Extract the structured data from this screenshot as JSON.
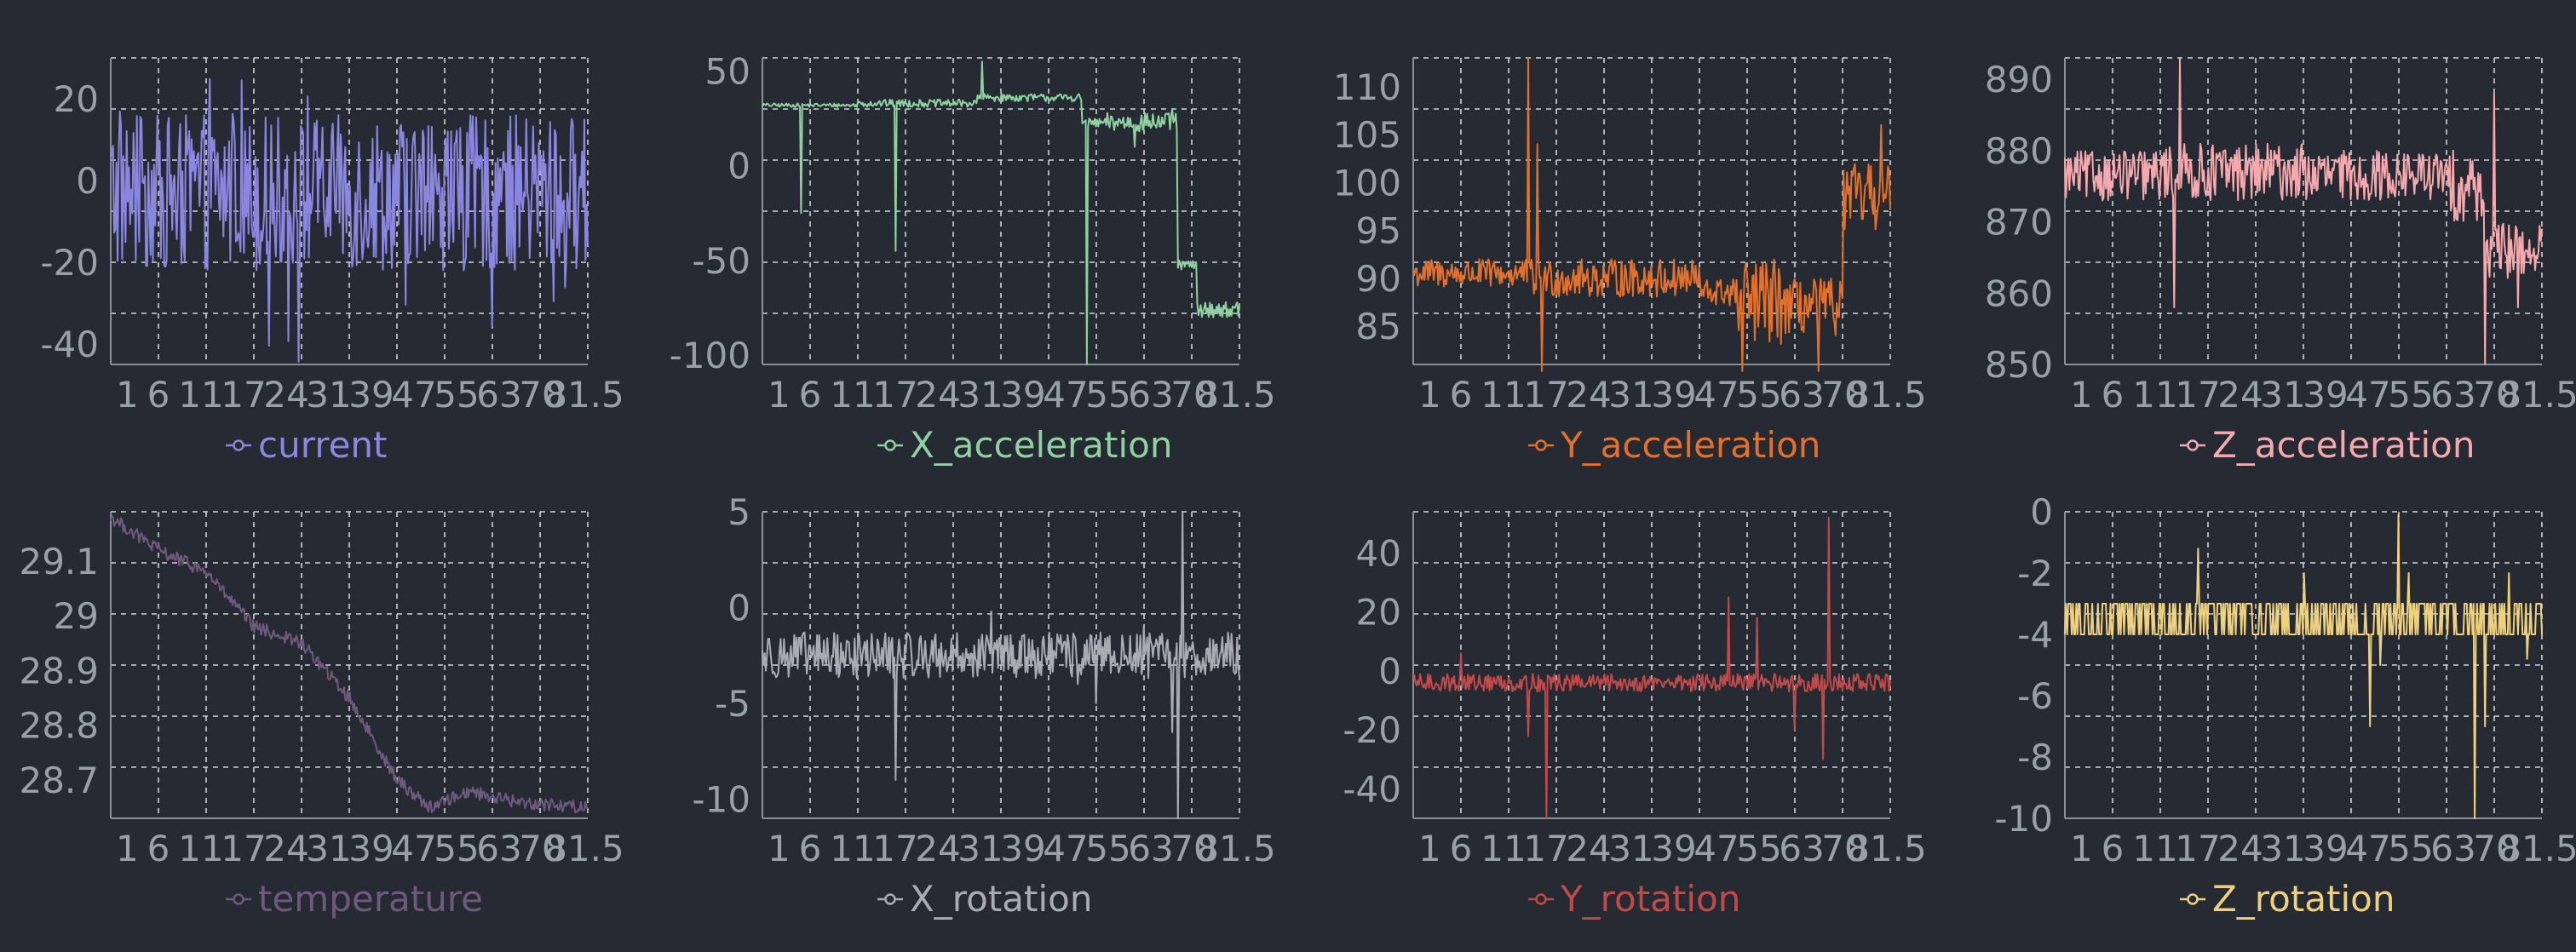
{
  "chart_data": [
    {
      "type": "line",
      "series": [
        {
          "name": "current",
          "color": "#8b87e0",
          "style": "noisy",
          "base": -3,
          "amp": 19,
          "spikeProb": 0.08,
          "spikeMin": -45,
          "spikeMax": 29
        }
      ],
      "x_tick_labels": [
        "1",
        "6",
        "11",
        "17",
        "24",
        "31",
        "39",
        "47",
        "55",
        "63",
        "70",
        "81.5"
      ],
      "y_ticks": [
        20,
        0,
        -20,
        -40
      ],
      "ylim": [
        -45,
        30
      ],
      "grid": true,
      "legend_position": "bottom"
    },
    {
      "type": "line",
      "series": [
        {
          "name": "X_acceleration",
          "color": "#8fd1a0",
          "style": "segments",
          "segments": [
            [
              0,
              0.2,
              31,
              33
            ],
            [
              0.2,
              0.45,
              31,
              35
            ],
            [
              0.45,
              0.67,
              34,
              38
            ],
            [
              0.67,
              0.72,
              20,
              25
            ],
            [
              0.72,
              0.87,
              18,
              28
            ],
            [
              0.87,
              0.91,
              -55,
              -50
            ],
            [
              0.91,
              1.0,
              -80,
              -72
            ]
          ],
          "spikes": [
            [
              0.08,
              -25
            ],
            [
              0.28,
              -45
            ],
            [
              0.46,
              55
            ],
            [
              0.68,
              -105
            ],
            [
              0.78,
              10
            ],
            [
              0.86,
              30
            ]
          ]
        }
      ],
      "x_tick_labels": [
        "1",
        "6",
        "11",
        "17",
        "24",
        "31",
        "39",
        "47",
        "55",
        "63",
        "70",
        "81.5"
      ],
      "y_ticks": [
        50,
        0,
        -50,
        -100
      ],
      "ylim": [
        -105,
        57
      ],
      "grid": true,
      "legend_position": "bottom"
    },
    {
      "type": "line",
      "series": [
        {
          "name": "Y_acceleration",
          "color": "#e5702a",
          "style": "segments",
          "segments": [
            [
              0,
              0.25,
              89,
              92
            ],
            [
              0.25,
              0.6,
              88,
              92
            ],
            [
              0.6,
              0.68,
              87,
              90
            ],
            [
              0.68,
              0.78,
              83,
              92
            ],
            [
              0.78,
              0.9,
              84,
              90
            ],
            [
              0.9,
              1.0,
              95,
              102
            ]
          ],
          "spikes": [
            [
              0.24,
              113
            ],
            [
              0.26,
              104
            ],
            [
              0.27,
              80
            ],
            [
              0.69,
              80
            ],
            [
              0.85,
              75
            ],
            [
              0.98,
              106
            ]
          ]
        }
      ],
      "x_tick_labels": [
        "1",
        "6",
        "11",
        "17",
        "24",
        "31",
        "39",
        "47",
        "55",
        "63",
        "70",
        "81.5"
      ],
      "y_ticks": [
        110,
        105,
        100,
        95,
        90,
        85
      ],
      "ylim": [
        81,
        113
      ],
      "grid": true,
      "legend_position": "bottom"
    },
    {
      "type": "line",
      "series": [
        {
          "name": "Z_acceleration",
          "color": "#f5a9ae",
          "style": "segments",
          "segments": [
            [
              0,
              0.2,
              873,
              880
            ],
            [
              0.2,
              0.5,
              873,
              881
            ],
            [
              0.5,
              0.8,
              873,
              880
            ],
            [
              0.8,
              0.88,
              870,
              880
            ],
            [
              0.88,
              1.0,
              862,
              870
            ]
          ],
          "spikes": [
            [
              0.23,
              858
            ],
            [
              0.24,
              893
            ],
            [
              0.88,
              850
            ],
            [
              0.9,
              888
            ],
            [
              0.95,
              858
            ]
          ]
        }
      ],
      "x_tick_labels": [
        "1",
        "6",
        "11",
        "17",
        "24",
        "31",
        "39",
        "47",
        "55",
        "63",
        "70",
        "81.5"
      ],
      "y_ticks": [
        890,
        880,
        870,
        860,
        850
      ],
      "ylim": [
        850,
        893
      ],
      "grid": true,
      "legend_position": "bottom"
    },
    {
      "type": "line",
      "series": [
        {
          "name": "temperature",
          "color": "#6e5a7c",
          "style": "trend",
          "points": [
            [
              0,
              29.18
            ],
            [
              0.1,
              29.12
            ],
            [
              0.2,
              29.08
            ],
            [
              0.3,
              28.98
            ],
            [
              0.4,
              28.95
            ],
            [
              0.5,
              28.85
            ],
            [
              0.6,
              28.7
            ],
            [
              0.67,
              28.65
            ],
            [
              0.75,
              28.68
            ],
            [
              0.85,
              28.66
            ],
            [
              1.0,
              28.65
            ]
          ]
        }
      ],
      "x_tick_labels": [
        "1",
        "6",
        "11",
        "17",
        "24",
        "31",
        "39",
        "47",
        "55",
        "63",
        "70",
        "81.5"
      ],
      "y_ticks": [
        29.1,
        29,
        28.9,
        28.8,
        28.7
      ],
      "ylim": [
        28.63,
        29.19
      ],
      "grid": true,
      "legend_position": "bottom"
    },
    {
      "type": "line",
      "series": [
        {
          "name": "X_rotation",
          "color": "#a9adb3",
          "style": "noisy",
          "base": -2.5,
          "amp": 1.2,
          "spikes": [
            [
              0.28,
              -9
            ],
            [
              0.48,
              -0.2
            ],
            [
              0.66,
              -4
            ],
            [
              0.7,
              -5
            ],
            [
              0.8,
              -1
            ],
            [
              0.86,
              -6.5
            ],
            [
              0.87,
              -11
            ],
            [
              0.88,
              5
            ]
          ]
        }
      ],
      "x_tick_labels": [
        "1",
        "6",
        "11",
        "17",
        "24",
        "31",
        "39",
        "47",
        "55",
        "63",
        "70",
        "81.5"
      ],
      "y_ticks": [
        5,
        0,
        -5,
        -10
      ],
      "ylim": [
        -11,
        5
      ],
      "grid": true,
      "legend_position": "bottom"
    },
    {
      "type": "line",
      "series": [
        {
          "name": "Y_rotation",
          "color": "#c24a4a",
          "style": "noisy",
          "base": -4,
          "amp": 3,
          "spikes": [
            [
              0.1,
              6
            ],
            [
              0.24,
              -22
            ],
            [
              0.28,
              -50
            ],
            [
              0.66,
              -25
            ],
            [
              0.66,
              25
            ],
            [
              0.72,
              18
            ],
            [
              0.8,
              -20
            ],
            [
              0.86,
              -30
            ],
            [
              0.87,
              52
            ]
          ]
        }
      ],
      "x_tick_labels": [
        "1",
        "6",
        "11",
        "17",
        "24",
        "31",
        "39",
        "47",
        "55",
        "63",
        "70",
        "81.5"
      ],
      "y_ticks": [
        40,
        20,
        0,
        -20,
        -40
      ],
      "ylim": [
        -50,
        54
      ],
      "grid": true,
      "legend_position": "bottom"
    },
    {
      "type": "line",
      "series": [
        {
          "name": "Z_rotation",
          "color": "#eed17f",
          "style": "binary",
          "low": -4,
          "high": -3,
          "spikes": [
            [
              0.28,
              -1.2
            ],
            [
              0.5,
              -2
            ],
            [
              0.64,
              -7
            ],
            [
              0.66,
              -5
            ],
            [
              0.7,
              -0.1
            ],
            [
              0.72,
              -2
            ],
            [
              0.86,
              -10
            ],
            [
              0.88,
              -7
            ],
            [
              0.93,
              -2
            ],
            [
              0.97,
              -4.8
            ]
          ]
        }
      ],
      "x_tick_labels": [
        "1",
        "6",
        "11",
        "17",
        "24",
        "31",
        "39",
        "47",
        "55",
        "63",
        "70",
        "81.5"
      ],
      "y_ticks": [
        0,
        -2,
        -4,
        -6,
        -8,
        -10
      ],
      "ylim": [
        -10,
        0
      ],
      "grid": true,
      "legend_position": "bottom"
    }
  ]
}
